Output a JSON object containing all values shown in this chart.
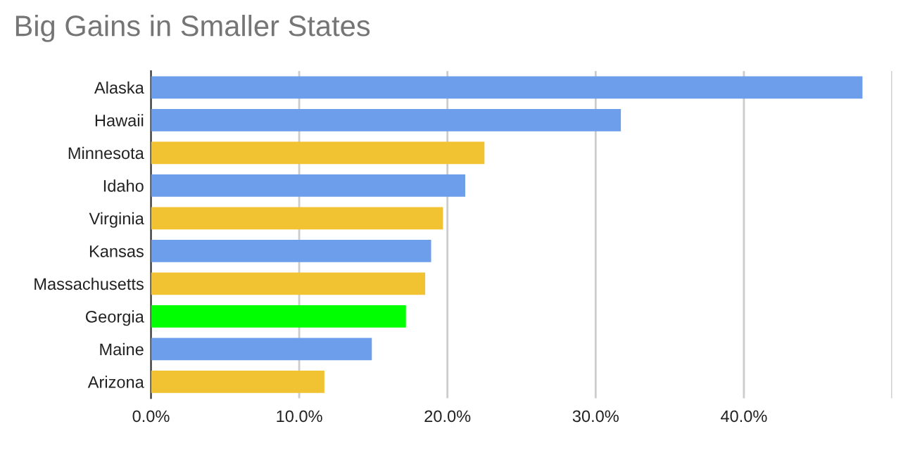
{
  "chart_data": {
    "type": "bar",
    "orientation": "horizontal",
    "title": "Big Gains in Smaller States",
    "categories": [
      "Alaska",
      "Hawaii",
      "Minnesota",
      "Idaho",
      "Virginia",
      "Kansas",
      "Massachusetts",
      "Georgia",
      "Maine",
      "Arizona"
    ],
    "values": [
      48.0,
      31.7,
      22.5,
      21.2,
      19.7,
      18.9,
      18.5,
      17.2,
      14.9,
      11.7
    ],
    "colors": [
      "#6d9eeb",
      "#6d9eeb",
      "#f1c232",
      "#6d9eeb",
      "#f1c232",
      "#6d9eeb",
      "#f1c232",
      "#00ff00",
      "#6d9eeb",
      "#f1c232"
    ],
    "xlim": [
      0,
      50
    ],
    "xticks": [
      {
        "value": 0,
        "label": "0.0%"
      },
      {
        "value": 10,
        "label": "10.0%"
      },
      {
        "value": 20,
        "label": "20.0%"
      },
      {
        "value": 30,
        "label": "30.0%"
      },
      {
        "value": 40,
        "label": "40.0%"
      },
      {
        "value": 50,
        "label": null
      }
    ],
    "grid": "x",
    "legend": false
  }
}
